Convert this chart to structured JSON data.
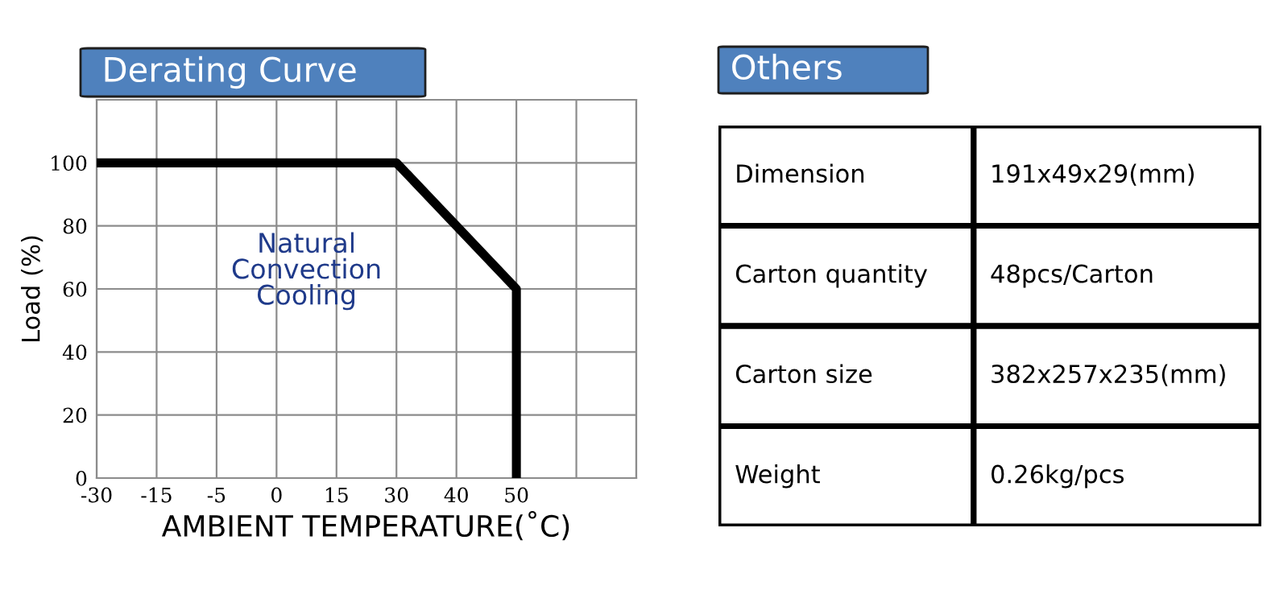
{
  "chart_data": [
    {
      "type": "line",
      "title": "Derating Curve",
      "xlabel": "AMBIENT TEMPERATURE(˚C)",
      "ylabel": "Load (%)",
      "categories": [
        "-30",
        "-15",
        "-5",
        "0",
        "15",
        "30",
        "40",
        "50",
        null,
        null
      ],
      "series": [
        {
          "color": "#000000",
          "x": [
            "-30",
            "30",
            "40",
            "50",
            "50"
          ],
          "values": [
            100,
            100,
            80,
            60,
            0
          ]
        }
      ],
      "ylim": [
        0,
        120
      ],
      "yticks": [
        0,
        20,
        40,
        60,
        80,
        100
      ],
      "grid": true,
      "legend": false,
      "marker": "none",
      "line_style": "solid",
      "annotations": [
        "Natural\nConvection\nCooling"
      ]
    },
    {
      "type": "other",
      "title": "Others",
      "annotations": [
        "Dimension",
        "191x49x29(mm)",
        "Carton quantity",
        "48pcs/Carton",
        "Carton size",
        "382x257x235(mm)",
        "Weight",
        "0.26kg/pcs"
      ]
    }
  ]
}
